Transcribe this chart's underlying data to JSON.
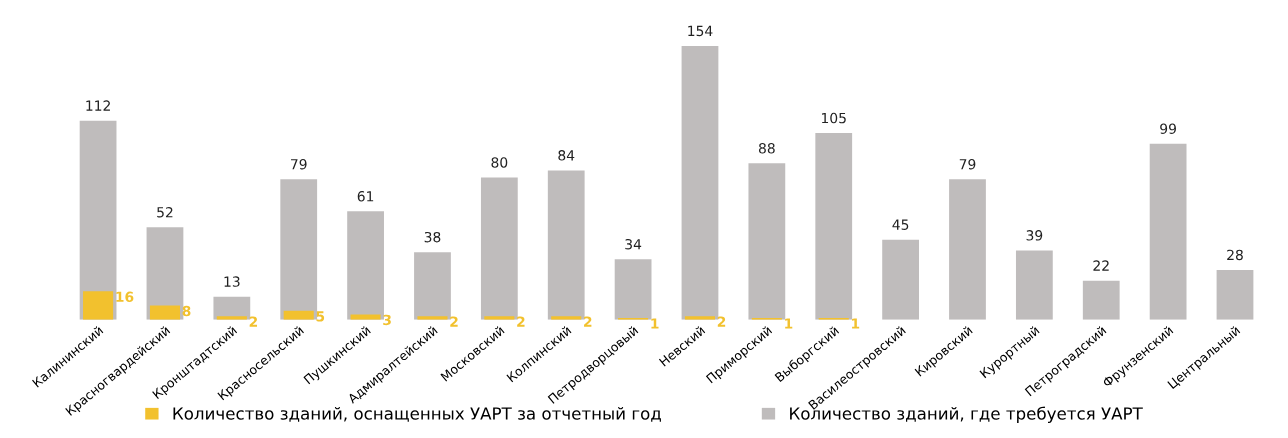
{
  "chart_data": {
    "type": "bar",
    "categories": [
      "Калининский",
      "Красногвардейский",
      "Кронштадтский",
      "Красносельский",
      "Пушкинский",
      "Адмиралтейский",
      "Московский",
      "Колпинский",
      "Петродворцовый",
      "Невский",
      "Приморский",
      "Выборгский",
      "Василеостровский",
      "Кировский",
      "Курортный",
      "Петроградский",
      "Фрунзенский",
      "Центральный"
    ],
    "series": [
      {
        "name": "Количество зданий, где требуется УАРТ",
        "color": "#bfbcbc",
        "values": [
          112,
          52,
          13,
          79,
          61,
          38,
          80,
          84,
          34,
          154,
          88,
          105,
          45,
          79,
          39,
          22,
          99,
          28
        ]
      },
      {
        "name": "Количество зданий, оснащенных УАРТ за отчетный год",
        "color": "#f2c12e",
        "values": [
          16,
          8,
          2,
          5,
          3,
          2,
          2,
          2,
          1,
          2,
          1,
          1,
          null,
          null,
          null,
          null,
          null,
          null
        ]
      }
    ],
    "data_labels": true,
    "legend": "bottom",
    "grid": false
  }
}
